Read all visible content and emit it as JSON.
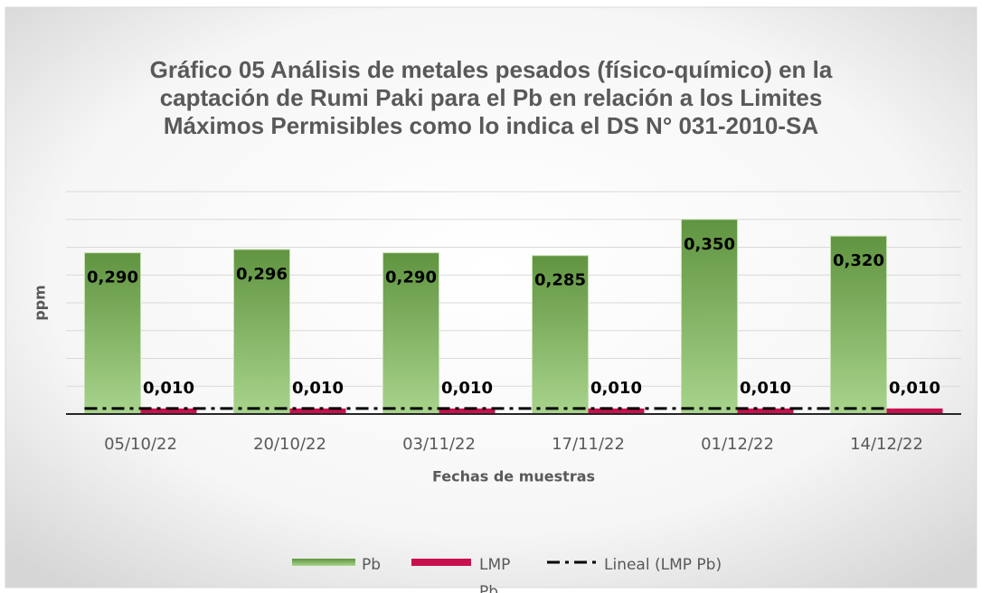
{
  "chart_data": {
    "type": "bar",
    "title": "Gráfico 05 Análisis de metales pesados (físico-químico) en la captación de Rumi Paki para el Pb en relación a los Limites Máximos Permisibles como lo indica el DS N° 031-2010-SA",
    "xlabel": "Fechas de muestras",
    "ylabel": "ppm",
    "categories": [
      "05/10/22",
      "20/10/22",
      "03/11/22",
      "17/11/22",
      "01/12/22",
      "14/12/22"
    ],
    "series": [
      {
        "name": "Pb",
        "color": "#609440",
        "values": [
          0.29,
          0.296,
          0.29,
          0.285,
          0.35,
          0.32
        ],
        "value_labels": [
          "0,290",
          "0,296",
          "0,290",
          "0,285",
          "0,350",
          "0,320"
        ]
      },
      {
        "name": "LMP Pb",
        "color": "#c8104e",
        "values": [
          0.01,
          0.01,
          0.01,
          0.01,
          0.01,
          0.01
        ],
        "value_labels": [
          "0,010",
          "0,010",
          "0,010",
          "0,010",
          "0,010",
          "0,010"
        ]
      }
    ],
    "trendline": {
      "name": "Lineal (LMP Pb)",
      "series": 1,
      "color": "#000000"
    },
    "ylim": [
      0,
      0.4
    ],
    "yticks": [
      0,
      0.05,
      0.1,
      0.15,
      0.2,
      0.25,
      0.3,
      0.35,
      0.4
    ],
    "show_ytick_labels": false,
    "grid": true,
    "legend": "bottom"
  }
}
